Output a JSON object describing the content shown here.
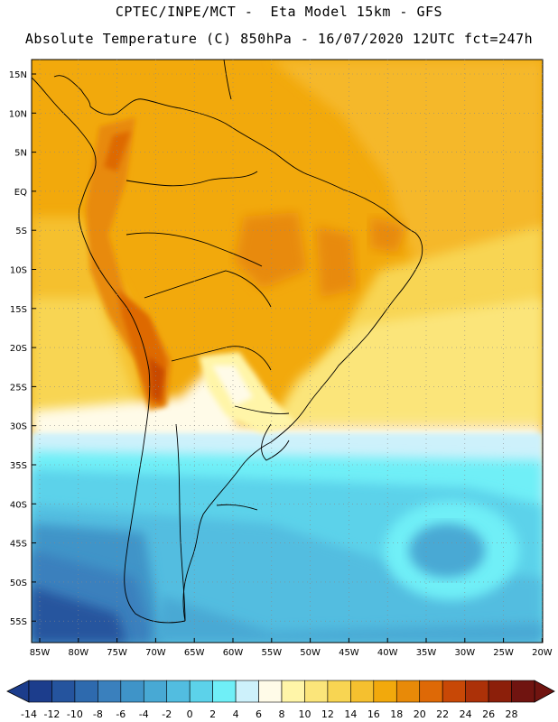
{
  "header": {
    "title_line1": "CPTEC/INPE/MCT -  Eta Model 15km - GFS",
    "title_line2": "Absolute Temperature (C) 850hPa - 16/07/2020 12UTC fct=247h"
  },
  "map": {
    "lat_labels": [
      "15N",
      "10N",
      "5N",
      "EQ",
      "5S",
      "10S",
      "15S",
      "20S",
      "25S",
      "30S",
      "35S",
      "40S",
      "45S",
      "50S",
      "55S"
    ],
    "lon_labels": [
      "85W",
      "80W",
      "75W",
      "70W",
      "65W",
      "60W",
      "55W",
      "50W",
      "45W",
      "40W",
      "35W",
      "30W",
      "25W",
      "20W"
    ]
  },
  "colorbar": {
    "labels": [
      "-14",
      "-12",
      "-10",
      "-8",
      "-6",
      "-4",
      "-2",
      "0",
      "2",
      "4",
      "6",
      "8",
      "10",
      "12",
      "14",
      "16",
      "18",
      "20",
      "22",
      "24",
      "26",
      "28"
    ],
    "colors": [
      "#1c3d8c",
      "#25549e",
      "#2e6aae",
      "#3a80bd",
      "#3f94c8",
      "#48a9d4",
      "#52bde0",
      "#5cd2ea",
      "#6feff7",
      "#cdf1fb",
      "#fffbe8",
      "#fff5a8",
      "#fbe57a",
      "#f8d552",
      "#f5c02f",
      "#f2a90c",
      "#e88a08",
      "#de6906",
      "#c84806",
      "#ac3108",
      "#8c1f0a",
      "#701410"
    ]
  }
}
